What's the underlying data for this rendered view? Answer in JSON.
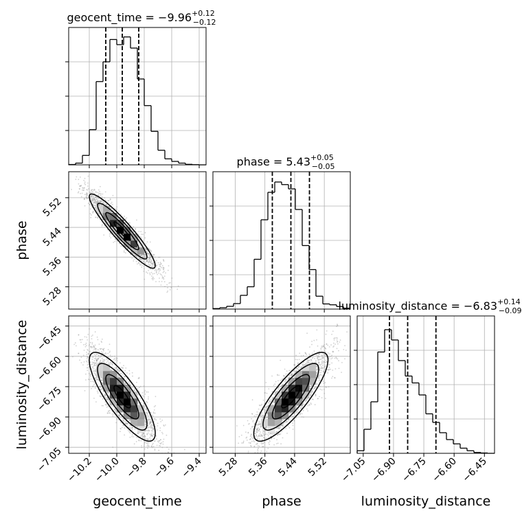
{
  "chart_data": {
    "type": "corner",
    "parameters": [
      {
        "name": "geocent_time",
        "axis_label": "geocent_time",
        "title_main": "geocent_time = −9.96",
        "title_plus": "+0.12",
        "title_minus": "−0.12",
        "median": -9.96,
        "q16": -10.08,
        "q84": -9.84,
        "range": [
          -10.35,
          -9.35
        ],
        "ticks": [
          -10.2,
          -10.0,
          -9.8,
          -9.6,
          -9.4
        ],
        "tick_labels": [
          "−10.2",
          "−10.0",
          "−9.8",
          "−9.6",
          "−9.4"
        ],
        "hist_bin_edges": [
          -10.35,
          -10.3,
          -10.25,
          -10.2,
          -10.15,
          -10.1,
          -10.05,
          -10.0,
          -9.95,
          -9.9,
          -9.85,
          -9.8,
          -9.75,
          -9.7,
          -9.65,
          -9.6,
          -9.55,
          -9.5,
          -9.45,
          -9.4,
          -9.35
        ],
        "hist_counts": [
          0.2,
          1.0,
          5.5,
          20.5,
          48.5,
          60.0,
          73.0,
          70.0,
          74.5,
          68.0,
          50.0,
          34.5,
          19.5,
          8.5,
          3.5,
          2.0,
          1.0,
          0.3,
          0.1,
          0.0
        ],
        "hist_ylim": [
          0,
          80
        ]
      },
      {
        "name": "phase",
        "axis_label": "phase",
        "title_main": "phase = 5.43",
        "title_plus": "+0.05",
        "title_minus": "−0.05",
        "median": 5.43,
        "q16": 5.38,
        "q84": 5.48,
        "range": [
          5.22,
          5.59
        ],
        "ticks": [
          5.28,
          5.36,
          5.44,
          5.52
        ],
        "tick_labels": [
          "5.28",
          "5.36",
          "5.44",
          "5.52"
        ],
        "hist_bin_edges": [
          5.22,
          5.2385,
          5.257,
          5.2755,
          5.294,
          5.3125,
          5.331,
          5.3495,
          5.368,
          5.3865,
          5.405,
          5.4235,
          5.442,
          5.4605,
          5.479,
          5.4975,
          5.516,
          5.5345,
          5.553,
          5.5715,
          5.59
        ],
        "hist_counts": [
          0.3,
          0.8,
          1.6,
          3.2,
          8.0,
          13.0,
          29.0,
          52.0,
          68.0,
          74.0,
          72.5,
          70.0,
          58.0,
          37.0,
          23.0,
          7.5,
          3.0,
          2.5,
          1.5,
          0.5
        ],
        "hist_ylim": [
          0,
          80
        ]
      },
      {
        "name": "luminosity_distance",
        "axis_label": "luminosity_distance",
        "title_main": "luminosity_distance = −6.83",
        "title_plus": "+0.14",
        "title_minus": "−0.09",
        "median": -6.83,
        "q16": -6.92,
        "q84": -6.69,
        "range": [
          -7.08,
          -6.4
        ],
        "ticks": [
          -7.05,
          -6.9,
          -6.75,
          -6.6,
          -6.45
        ],
        "tick_labels": [
          "−7.05",
          "−6.90",
          "−6.75",
          "−6.60",
          "−6.45"
        ],
        "hist_bin_edges": [
          -7.08,
          -7.046,
          -7.012,
          -6.978,
          -6.944,
          -6.91,
          -6.876,
          -6.842,
          -6.808,
          -6.774,
          -6.74,
          -6.706,
          -6.672,
          -6.638,
          -6.604,
          -6.57,
          -6.536,
          -6.502,
          -6.468,
          -6.434,
          -6.4
        ],
        "hist_counts": [
          1.5,
          14.0,
          30.0,
          59.0,
          72.0,
          66.0,
          54.0,
          45.0,
          41.0,
          34.0,
          23.0,
          18.0,
          12.0,
          8.0,
          5.5,
          3.0,
          1.5,
          0.5,
          0.2,
          0.0
        ],
        "hist_ylim": [
          0,
          80
        ]
      }
    ],
    "pairs": [
      {
        "x": "geocent_time",
        "y": "phase",
        "mean": [
          -9.96,
          5.43
        ],
        "sd": [
          0.12,
          0.05
        ],
        "corr": -0.93
      },
      {
        "x": "geocent_time",
        "y": "luminosity_distance",
        "mean": [
          -9.96,
          -6.8
        ],
        "sd": [
          0.12,
          0.11
        ],
        "corr": -0.82
      },
      {
        "x": "phase",
        "y": "luminosity_distance",
        "mean": [
          5.43,
          -6.8
        ],
        "sd": [
          0.05,
          0.11
        ],
        "corr": 0.83
      }
    ],
    "contour_levels_sigma": [
      0.5,
      1.0,
      1.5,
      2.0
    ],
    "grid": true,
    "colors": {
      "line": "#000000",
      "points": "#9a9a9a",
      "grid": "#b0b0b0"
    }
  }
}
